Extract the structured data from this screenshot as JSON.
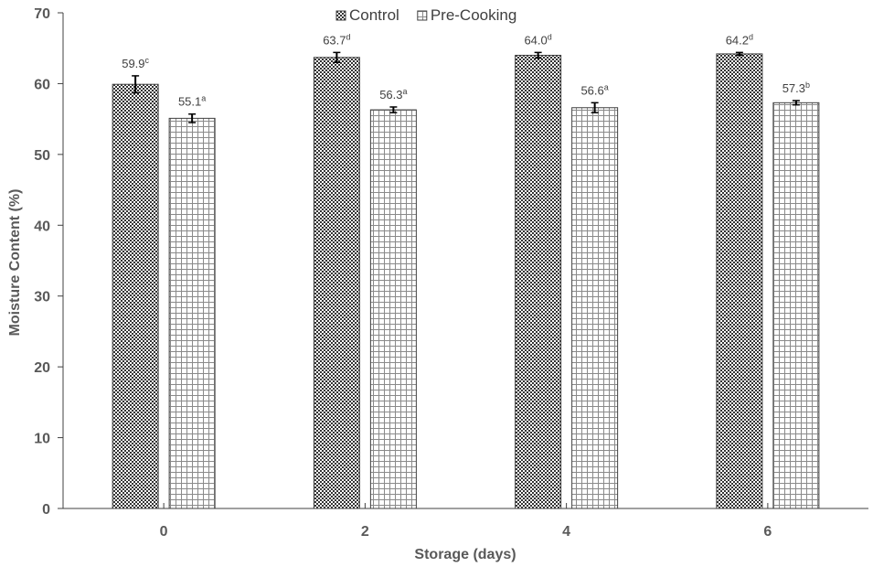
{
  "chart_data": {
    "type": "bar",
    "categories": [
      "0",
      "2",
      "4",
      "6"
    ],
    "series": [
      {
        "name": "Control",
        "values": [
          59.9,
          63.7,
          64.0,
          64.2
        ],
        "errors": [
          1.2,
          0.7,
          0.4,
          0.2
        ],
        "labels": [
          "59.9",
          "63.7",
          "64.0",
          "64.2"
        ],
        "letters": [
          "c",
          "d",
          "d",
          "d"
        ],
        "pattern": "checkered"
      },
      {
        "name": "Pre-Cooking",
        "values": [
          55.1,
          56.3,
          56.6,
          57.3
        ],
        "errors": [
          0.6,
          0.4,
          0.7,
          0.3
        ],
        "labels": [
          "55.1",
          "56.3",
          "56.6",
          "57.3"
        ],
        "letters": [
          "a",
          "a",
          "a",
          "b"
        ],
        "pattern": "grid"
      }
    ],
    "xlabel": "Storage (days)",
    "ylabel": "Moisture Content (%)",
    "ylim": [
      0,
      70
    ],
    "yticks": [
      0,
      10,
      20,
      30,
      40,
      50,
      60,
      70
    ],
    "grid": false,
    "legend_position": "top-center",
    "colors": {
      "axis": "#404040",
      "bar_border": "#404040",
      "text": "#595959"
    }
  }
}
